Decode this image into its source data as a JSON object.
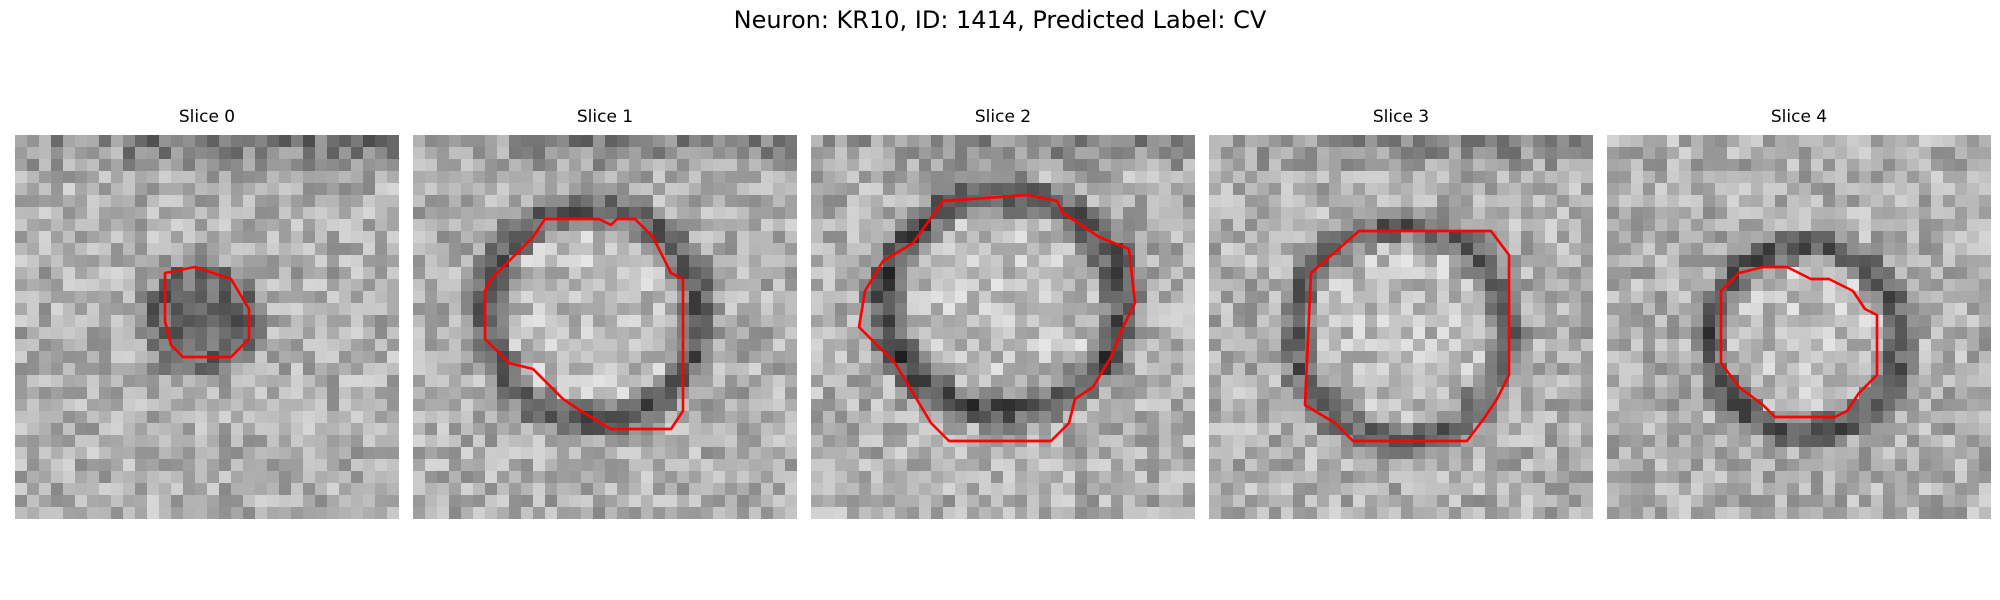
{
  "figure": {
    "title": "Neuron: KR10, ID: 1414, Predicted Label: CV"
  },
  "panels": [
    {
      "title": "Slice 0"
    },
    {
      "title": "Slice 1"
    },
    {
      "title": "Slice 2"
    },
    {
      "title": "Slice 3"
    },
    {
      "title": "Slice 4"
    }
  ],
  "colors": {
    "contour": "#ff0000",
    "background": "#ffffff"
  }
}
